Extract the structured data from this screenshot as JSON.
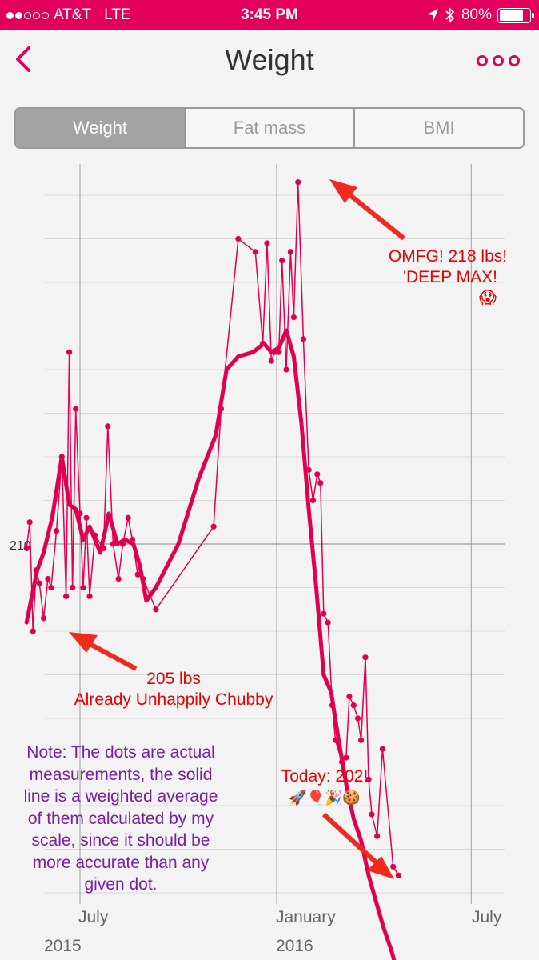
{
  "status_bar": {
    "carrier": "AT&T",
    "network": "LTE",
    "time": "3:45 PM",
    "battery": "80%",
    "battery_level": 0.8,
    "signal_bars": 2
  },
  "nav": {
    "title": "Weight",
    "back_icon": "chevron-left-icon",
    "more_icon": "ellipsis-icon"
  },
  "tabs": [
    {
      "label": "Weight",
      "selected": true
    },
    {
      "label": "Fat mass",
      "selected": false
    },
    {
      "label": "BMI",
      "selected": false
    }
  ],
  "colors": {
    "accent": "#e2005a",
    "line": "#e0004f",
    "annotation_red": "#e80000",
    "annotation_purple": "#7a1fa2"
  },
  "chart_data": {
    "type": "line",
    "y_tick_labels": [
      "210"
    ],
    "x_tick_labels": [
      "July",
      "January",
      "July"
    ],
    "x_year_labels": [
      "2015",
      "2016"
    ],
    "series": [
      {
        "type": "scatter",
        "x": [
          "2015-05-12",
          "2015-05-15",
          "2015-05-18",
          "2015-05-21",
          "2015-05-24",
          "2015-05-28",
          "2015-06-01",
          "2015-06-04",
          "2015-06-09",
          "2015-06-14",
          "2015-06-18",
          "2015-06-21",
          "2015-06-24",
          "2015-06-27",
          "2015-07-01",
          "2015-07-04",
          "2015-07-07",
          "2015-07-10",
          "2015-07-15",
          "2015-07-23",
          "2015-07-27",
          "2015-08-01",
          "2015-08-06",
          "2015-08-10",
          "2015-08-15",
          "2015-08-19",
          "2015-08-24",
          "2015-08-29",
          "2015-09-10",
          "2015-11-03",
          "2015-11-10",
          "2015-11-26",
          "2015-12-12",
          "2015-12-19",
          "2015-12-23",
          "2015-12-27",
          "2015-12-30",
          "2016-01-03",
          "2016-01-06",
          "2016-01-10",
          "2016-01-14",
          "2016-01-17",
          "2016-01-21",
          "2016-01-26",
          "2016-01-31",
          "2016-02-04",
          "2016-02-08",
          "2016-02-11",
          "2016-02-14",
          "2016-02-18",
          "2016-02-22",
          "2016-02-25",
          "2016-03-02",
          "2016-03-06",
          "2016-03-09",
          "2016-03-13",
          "2016-03-17",
          "2016-03-20",
          "2016-03-24",
          "2016-03-27",
          "2016-03-30",
          "2016-04-04",
          "2016-04-09",
          "2016-04-19",
          "2016-04-24"
        ],
        "y": [
          209.9,
          210.5,
          208.0,
          209.4,
          209.1,
          208.3,
          209.2,
          209.0,
          210.3,
          212.0,
          208.8,
          214.4,
          209.0,
          213.1,
          210.7,
          209.0,
          210.6,
          208.8,
          210.2,
          209.9,
          212.7,
          210.0,
          209.2,
          210.0,
          210.6,
          210.1,
          209.3,
          209.2,
          208.5,
          210.4,
          213.1,
          217.0,
          216.7,
          214.6,
          216.9,
          214.2,
          214.4,
          214.4,
          216.5,
          214.0,
          216.7,
          215.2,
          218.3,
          214.7,
          211.7,
          211.0,
          211.6,
          211.4,
          208.4,
          208.2,
          206.3,
          205.5,
          205.0,
          205.1,
          206.5,
          206.3,
          206.0,
          205.5,
          207.4,
          204.6,
          203.8,
          203.3,
          205.3,
          202.6,
          202.4
        ]
      },
      {
        "type": "line",
        "x": [
          "2015-05-12",
          "2015-05-22",
          "2015-05-28",
          "2015-06-05",
          "2015-06-14",
          "2015-06-21",
          "2015-06-27",
          "2015-07-04",
          "2015-07-10",
          "2015-07-20",
          "2015-07-28",
          "2015-08-05",
          "2015-08-12",
          "2015-08-20",
          "2015-08-26",
          "2015-09-01",
          "2015-09-10",
          "2015-10-01",
          "2015-10-20",
          "2015-11-05",
          "2015-11-15",
          "2015-11-26",
          "2015-12-10",
          "2015-12-20",
          "2015-12-27",
          "2016-01-03",
          "2016-01-10",
          "2016-01-17",
          "2016-01-24",
          "2016-01-31",
          "2016-02-07",
          "2016-02-14",
          "2016-02-21",
          "2016-02-28",
          "2016-03-06",
          "2016-03-13",
          "2016-03-20",
          "2016-03-27",
          "2016-04-03",
          "2016-04-10",
          "2016-04-17",
          "2016-04-24"
        ],
        "y": [
          208.2,
          209.4,
          209.8,
          210.6,
          212.0,
          210.9,
          210.8,
          210.1,
          210.4,
          209.8,
          210.7,
          210.0,
          210.1,
          210.0,
          209.5,
          208.7,
          209.0,
          210.0,
          211.5,
          212.5,
          214.0,
          214.3,
          214.4,
          214.6,
          214.4,
          214.5,
          214.9,
          214.3,
          212.8,
          210.8,
          209.0,
          207.0,
          206.6,
          205.5,
          204.5,
          203.7,
          203.2,
          202.4,
          201.8,
          201.2,
          200.7,
          200.1
        ]
      }
    ],
    "annotations": [
      {
        "lines": [
          "OMFG! 218 lbs!",
          "'DEEP MAX!",
          "😱"
        ]
      },
      {
        "lines": [
          "205 lbs",
          "Already Unhappily Chubby"
        ]
      },
      {
        "lines": [
          "Note: The dots are actual",
          "measurements, the solid",
          "line is a weighted average",
          "of them calculated by my",
          "scale, since it should be",
          "more accurate than any",
          "given dot."
        ]
      },
      {
        "lines": [
          "Today: 202!",
          "🚀🎈🎉🍪"
        ]
      }
    ]
  }
}
